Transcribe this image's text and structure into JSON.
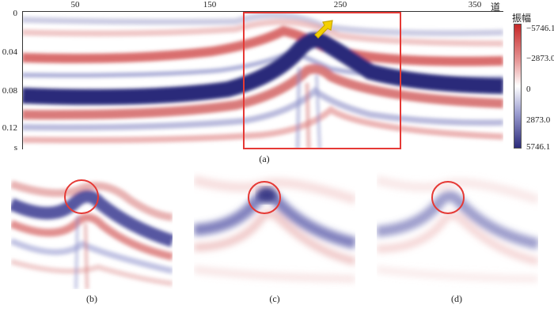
{
  "figure": {
    "x_axis": {
      "ticks": [
        "50",
        "150",
        "250",
        "350"
      ],
      "unit": "道"
    },
    "y_axis": {
      "ticks": [
        "0",
        "0.04",
        "0.08",
        "0.12"
      ],
      "unit": "s"
    },
    "colorbar": {
      "title": "振幅",
      "labels": [
        "−5746.1",
        "−2873.0",
        "0",
        "2873.0",
        "5746.1"
      ],
      "colors": {
        "positive": "#c62828",
        "zero": "#ffffff",
        "negative": "#2b2a7a"
      }
    },
    "highlight_color": "#e53935",
    "arrow_color": "#f4d000",
    "captions": {
      "a": "(a)",
      "b": "(b)",
      "c": "(c)",
      "d": "(d)"
    }
  }
}
